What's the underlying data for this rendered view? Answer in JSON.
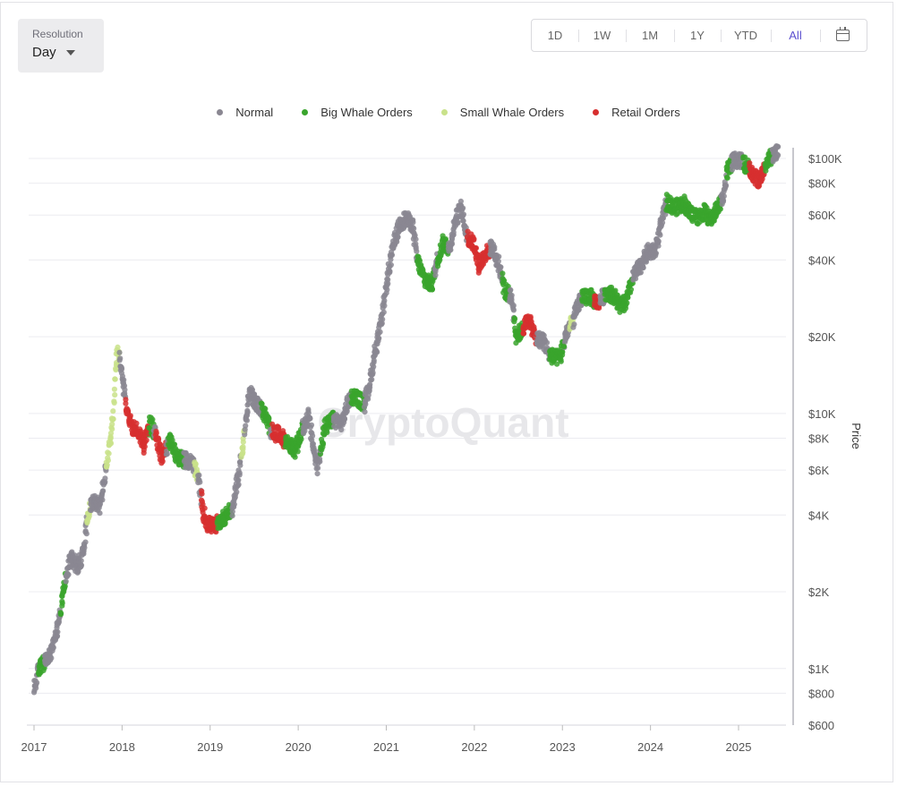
{
  "resolution": {
    "label": "Resolution",
    "value": "Day"
  },
  "range_buttons": [
    "1D",
    "1W",
    "1M",
    "1Y",
    "YTD",
    "All"
  ],
  "active_range": "All",
  "watermark": "CryptoQuant",
  "colors": {
    "normal": "#8a8792",
    "big_whale": "#3aa52d",
    "small_whale": "#c9e28a",
    "retail": "#d72f2f",
    "accent": "#5b4fcf"
  },
  "chart_data": {
    "type": "scatter",
    "title": "",
    "xlabel": "",
    "ylabel": "Price",
    "y_scale": "log",
    "ylim": [
      600,
      115000
    ],
    "xlim": [
      2017.0,
      2025.55
    ],
    "x_ticks": [
      "2017",
      "2018",
      "2019",
      "2020",
      "2021",
      "2022",
      "2023",
      "2024",
      "2025"
    ],
    "y_ticks": [
      {
        "value": 100000,
        "label": "$100K"
      },
      {
        "value": 80000,
        "label": "$80K"
      },
      {
        "value": 60000,
        "label": "$60K"
      },
      {
        "value": 40000,
        "label": "$40K"
      },
      {
        "value": 20000,
        "label": "$20K"
      },
      {
        "value": 10000,
        "label": "$10K"
      },
      {
        "value": 8000,
        "label": "$8K"
      },
      {
        "value": 6000,
        "label": "$6K"
      },
      {
        "value": 4000,
        "label": "$4K"
      },
      {
        "value": 2000,
        "label": "$2K"
      },
      {
        "value": 1000,
        "label": "$1K"
      },
      {
        "value": 800,
        "label": "$800"
      },
      {
        "value": 600,
        "label": "$600"
      }
    ],
    "legend": {
      "placement": "top-center",
      "entries": [
        {
          "key": "normal",
          "name": "Normal"
        },
        {
          "key": "big_whale",
          "name": "Big Whale Orders"
        },
        {
          "key": "small_whale",
          "name": "Small Whale Orders"
        },
        {
          "key": "retail",
          "name": "Retail Orders"
        }
      ]
    },
    "grid": true,
    "price_path": [
      [
        2017.0,
        820
      ],
      [
        2017.05,
        1000
      ],
      [
        2017.12,
        1050
      ],
      [
        2017.2,
        1150
      ],
      [
        2017.28,
        1500
      ],
      [
        2017.35,
        2200
      ],
      [
        2017.42,
        2700
      ],
      [
        2017.5,
        2500
      ],
      [
        2017.55,
        2800
      ],
      [
        2017.62,
        4200
      ],
      [
        2017.68,
        4600
      ],
      [
        2017.75,
        4300
      ],
      [
        2017.8,
        5600
      ],
      [
        2017.85,
        7200
      ],
      [
        2017.9,
        9800
      ],
      [
        2017.93,
        16000
      ],
      [
        2017.96,
        17500
      ],
      [
        2018.0,
        14000
      ],
      [
        2018.05,
        10500
      ],
      [
        2018.1,
        9000
      ],
      [
        2018.18,
        8500
      ],
      [
        2018.25,
        7500
      ],
      [
        2018.32,
        9200
      ],
      [
        2018.38,
        8200
      ],
      [
        2018.45,
        6800
      ],
      [
        2018.55,
        7800
      ],
      [
        2018.62,
        6800
      ],
      [
        2018.7,
        6600
      ],
      [
        2018.8,
        6400
      ],
      [
        2018.87,
        5500
      ],
      [
        2018.92,
        4100
      ],
      [
        2018.97,
        3700
      ],
      [
        2019.05,
        3600
      ],
      [
        2019.15,
        3900
      ],
      [
        2019.25,
        4200
      ],
      [
        2019.32,
        5600
      ],
      [
        2019.38,
        8000
      ],
      [
        2019.45,
        12000
      ],
      [
        2019.52,
        11000
      ],
      [
        2019.6,
        10200
      ],
      [
        2019.7,
        8500
      ],
      [
        2019.8,
        8200
      ],
      [
        2019.9,
        7500
      ],
      [
        2019.97,
        7200
      ],
      [
        2020.05,
        8700
      ],
      [
        2020.12,
        9800
      ],
      [
        2020.18,
        7000
      ],
      [
        2020.22,
        6200
      ],
      [
        2020.3,
        8800
      ],
      [
        2020.4,
        9500
      ],
      [
        2020.5,
        9200
      ],
      [
        2020.58,
        11500
      ],
      [
        2020.65,
        11700
      ],
      [
        2020.75,
        10800
      ],
      [
        2020.82,
        13500
      ],
      [
        2020.88,
        18000
      ],
      [
        2020.95,
        23000
      ],
      [
        2021.0,
        32000
      ],
      [
        2021.08,
        45000
      ],
      [
        2021.15,
        55000
      ],
      [
        2021.22,
        58000
      ],
      [
        2021.3,
        55000
      ],
      [
        2021.35,
        40000
      ],
      [
        2021.4,
        36000
      ],
      [
        2021.45,
        33000
      ],
      [
        2021.52,
        32000
      ],
      [
        2021.58,
        40000
      ],
      [
        2021.65,
        47000
      ],
      [
        2021.72,
        44000
      ],
      [
        2021.78,
        57000
      ],
      [
        2021.85,
        64000
      ],
      [
        2021.92,
        49000
      ],
      [
        2022.0,
        46000
      ],
      [
        2022.05,
        38000
      ],
      [
        2022.12,
        42000
      ],
      [
        2022.2,
        45000
      ],
      [
        2022.28,
        38000
      ],
      [
        2022.35,
        30000
      ],
      [
        2022.42,
        29000
      ],
      [
        2022.48,
        20000
      ],
      [
        2022.55,
        21500
      ],
      [
        2022.62,
        23500
      ],
      [
        2022.7,
        19500
      ],
      [
        2022.78,
        19500
      ],
      [
        2022.85,
        17000
      ],
      [
        2022.92,
        16500
      ],
      [
        2022.98,
        16800
      ],
      [
        2023.05,
        21000
      ],
      [
        2023.12,
        23000
      ],
      [
        2023.2,
        28000
      ],
      [
        2023.3,
        29000
      ],
      [
        2023.4,
        27000
      ],
      [
        2023.5,
        30000
      ],
      [
        2023.58,
        29000
      ],
      [
        2023.65,
        26500
      ],
      [
        2023.72,
        27000
      ],
      [
        2023.8,
        34000
      ],
      [
        2023.88,
        37500
      ],
      [
        2023.97,
        43000
      ],
      [
        2024.05,
        43000
      ],
      [
        2024.1,
        51000
      ],
      [
        2024.18,
        68000
      ],
      [
        2024.28,
        64000
      ],
      [
        2024.38,
        67000
      ],
      [
        2024.45,
        61000
      ],
      [
        2024.55,
        59000
      ],
      [
        2024.62,
        62000
      ],
      [
        2024.68,
        57000
      ],
      [
        2024.75,
        63000
      ],
      [
        2024.82,
        70000
      ],
      [
        2024.88,
        91000
      ],
      [
        2024.93,
        97000
      ],
      [
        2025.0,
        99000
      ],
      [
        2025.05,
        96000
      ],
      [
        2025.12,
        92000
      ],
      [
        2025.18,
        84000
      ],
      [
        2025.25,
        82000
      ],
      [
        2025.3,
        94000
      ],
      [
        2025.38,
        103000
      ],
      [
        2025.45,
        106000
      ]
    ],
    "classified_segments": [
      {
        "type": "big_whale",
        "x": [
          2017.05,
          2017.12
        ]
      },
      {
        "type": "big_whale",
        "x": [
          2017.3,
          2017.36
        ]
      },
      {
        "type": "small_whale",
        "x": [
          2017.6,
          2017.64
        ]
      },
      {
        "type": "small_whale",
        "x": [
          2017.82,
          2017.97
        ]
      },
      {
        "type": "retail",
        "x": [
          2018.04,
          2018.3
        ]
      },
      {
        "type": "big_whale",
        "x": [
          2018.3,
          2018.36
        ]
      },
      {
        "type": "retail",
        "x": [
          2018.38,
          2018.5
        ]
      },
      {
        "type": "big_whale",
        "x": [
          2018.52,
          2018.7
        ]
      },
      {
        "type": "small_whale",
        "x": [
          2018.82,
          2018.86
        ]
      },
      {
        "type": "retail",
        "x": [
          2018.9,
          2019.08
        ]
      },
      {
        "type": "big_whale",
        "x": [
          2019.08,
          2019.25
        ]
      },
      {
        "type": "small_whale",
        "x": [
          2019.35,
          2019.39
        ]
      },
      {
        "type": "big_whale",
        "x": [
          2019.58,
          2019.68
        ]
      },
      {
        "type": "retail",
        "x": [
          2019.7,
          2019.85
        ]
      },
      {
        "type": "big_whale",
        "x": [
          2019.85,
          2020.05
        ]
      },
      {
        "type": "big_whale",
        "x": [
          2020.25,
          2020.4
        ]
      },
      {
        "type": "big_whale",
        "x": [
          2020.6,
          2020.75
        ]
      },
      {
        "type": "big_whale",
        "x": [
          2021.35,
          2021.55
        ]
      },
      {
        "type": "big_whale",
        "x": [
          2021.58,
          2021.7
        ]
      },
      {
        "type": "retail",
        "x": [
          2021.92,
          2022.18
        ]
      },
      {
        "type": "big_whale",
        "x": [
          2022.32,
          2022.4
        ]
      },
      {
        "type": "big_whale",
        "x": [
          2022.45,
          2022.55
        ]
      },
      {
        "type": "retail",
        "x": [
          2022.55,
          2022.7
        ]
      },
      {
        "type": "big_whale",
        "x": [
          2022.85,
          2023.02
        ]
      },
      {
        "type": "small_whale",
        "x": [
          2023.08,
          2023.12
        ]
      },
      {
        "type": "big_whale",
        "x": [
          2023.22,
          2023.4
        ]
      },
      {
        "type": "retail",
        "x": [
          2023.36,
          2023.42
        ]
      },
      {
        "type": "big_whale",
        "x": [
          2023.48,
          2023.8
        ]
      },
      {
        "type": "big_whale",
        "x": [
          2024.18,
          2024.8
        ]
      },
      {
        "type": "big_whale",
        "x": [
          2024.86,
          2024.92
        ]
      },
      {
        "type": "big_whale",
        "x": [
          2025.05,
          2025.12
        ]
      },
      {
        "type": "retail",
        "x": [
          2025.12,
          2025.3
        ]
      },
      {
        "type": "big_whale",
        "x": [
          2025.3,
          2025.38
        ]
      }
    ]
  }
}
